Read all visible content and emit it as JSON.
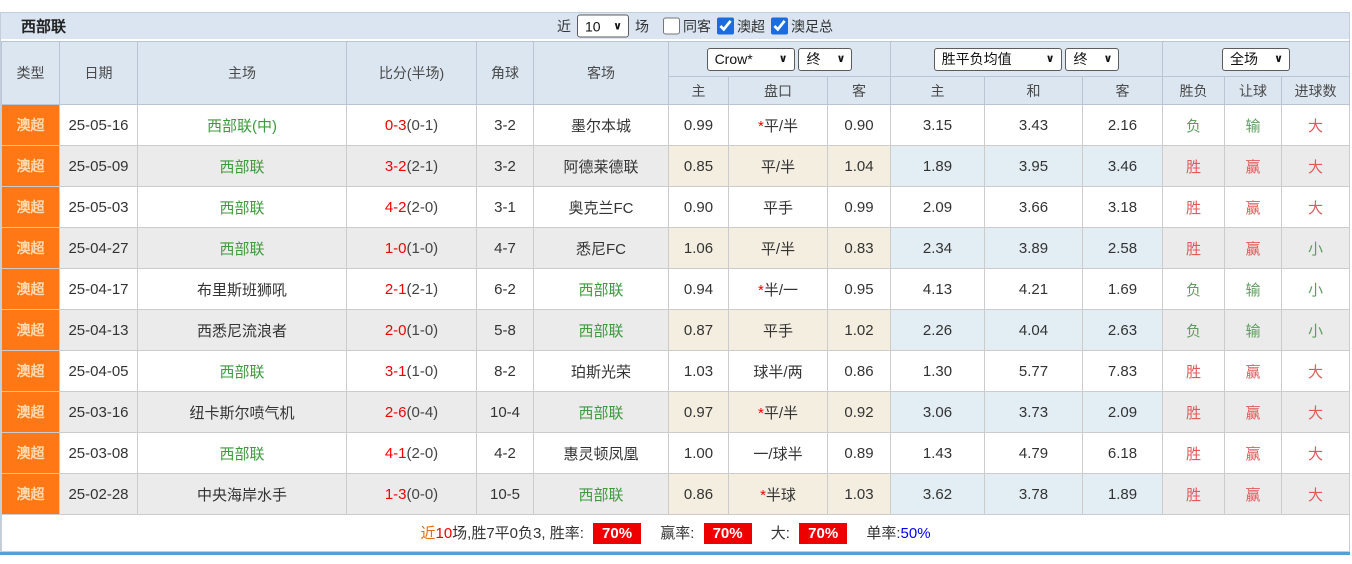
{
  "title": "西部联",
  "colors": {
    "panel-blue": "#dbe5f1",
    "header-blue": "#dce6f1",
    "league-orange": "#ff7815",
    "score-red": "#f20000",
    "team-green": "#3f9a3f",
    "result-red": "#e05a5a",
    "result-green": "#5f9c5f",
    "badge-red": "#ee0000",
    "near-orange": "#e17009",
    "link-blue": "#0000ee",
    "checkbox-blue": "#1b6ce0",
    "bottom-blue": "#58a0d2"
  },
  "filter": {
    "near_label": "近",
    "near_value": "10",
    "games_label": "场",
    "checkboxes": [
      {
        "label": "同客",
        "checked": false
      },
      {
        "label": "澳超",
        "checked": true
      },
      {
        "label": "澳足总",
        "checked": true
      }
    ]
  },
  "header": {
    "type": "类型",
    "date": "日期",
    "home": "主场",
    "score": "比分(半场)",
    "corner": "角球",
    "away": "客场",
    "handicap_company": "Crow*",
    "handicap_state": "终",
    "odds_company": "胜平负均值",
    "odds_state": "终",
    "result_scope": "全场",
    "sub": {
      "h_home": "主",
      "h_line": "盘口",
      "h_away": "客",
      "o_home": "主",
      "o_draw": "和",
      "o_away": "客",
      "wl": "胜负",
      "ah": "让球",
      "goals": "进球数"
    }
  },
  "rows": [
    {
      "type": "澳超",
      "date": "25-05-16",
      "home": "西部联(中)",
      "score_ft": "0-3",
      "score_ht": "(0-1)",
      "corner": "3-2",
      "away": "墨尔本城",
      "h_home": "0.99",
      "line": "*平/半",
      "h_away": "0.90",
      "o_home": "3.15",
      "o_draw": "3.43",
      "o_away": "2.16",
      "wl": "负",
      "ah": "输",
      "goals": "大"
    },
    {
      "type": "澳超",
      "date": "25-05-09",
      "home": "西部联",
      "score_ft": "3-2",
      "score_ht": "(2-1)",
      "corner": "3-2",
      "away": "阿德莱德联",
      "h_home": "0.85",
      "line": "平/半",
      "h_away": "1.04",
      "o_home": "1.89",
      "o_draw": "3.95",
      "o_away": "3.46",
      "wl": "胜",
      "ah": "赢",
      "goals": "大"
    },
    {
      "type": "澳超",
      "date": "25-05-03",
      "home": "西部联",
      "score_ft": "4-2",
      "score_ht": "(2-0)",
      "corner": "3-1",
      "away": "奥克兰FC",
      "h_home": "0.90",
      "line": "平手",
      "h_away": "0.99",
      "o_home": "2.09",
      "o_draw": "3.66",
      "o_away": "3.18",
      "wl": "胜",
      "ah": "赢",
      "goals": "大"
    },
    {
      "type": "澳超",
      "date": "25-04-27",
      "home": "西部联",
      "score_ft": "1-0",
      "score_ht": "(1-0)",
      "corner": "4-7",
      "away": "悉尼FC",
      "h_home": "1.06",
      "line": "平/半",
      "h_away": "0.83",
      "o_home": "2.34",
      "o_draw": "3.89",
      "o_away": "2.58",
      "wl": "胜",
      "ah": "赢",
      "goals": "小"
    },
    {
      "type": "澳超",
      "date": "25-04-17",
      "home": "布里斯班狮吼",
      "score_ft": "2-1",
      "score_ht": "(2-1)",
      "corner": "6-2",
      "away": "西部联",
      "h_home": "0.94",
      "line": "*半/一",
      "h_away": "0.95",
      "o_home": "4.13",
      "o_draw": "4.21",
      "o_away": "1.69",
      "wl": "负",
      "ah": "输",
      "goals": "小"
    },
    {
      "type": "澳超",
      "date": "25-04-13",
      "home": "西悉尼流浪者",
      "score_ft": "2-0",
      "score_ht": "(1-0)",
      "corner": "5-8",
      "away": "西部联",
      "h_home": "0.87",
      "line": "平手",
      "h_away": "1.02",
      "o_home": "2.26",
      "o_draw": "4.04",
      "o_away": "2.63",
      "wl": "负",
      "ah": "输",
      "goals": "小"
    },
    {
      "type": "澳超",
      "date": "25-04-05",
      "home": "西部联",
      "score_ft": "3-1",
      "score_ht": "(1-0)",
      "corner": "8-2",
      "away": "珀斯光荣",
      "h_home": "1.03",
      "line": "球半/两",
      "h_away": "0.86",
      "o_home": "1.30",
      "o_draw": "5.77",
      "o_away": "7.83",
      "wl": "胜",
      "ah": "赢",
      "goals": "大"
    },
    {
      "type": "澳超",
      "date": "25-03-16",
      "home": "纽卡斯尔喷气机",
      "score_ft": "2-6",
      "score_ht": "(0-4)",
      "corner": "10-4",
      "away": "西部联",
      "h_home": "0.97",
      "line": "*平/半",
      "h_away": "0.92",
      "o_home": "3.06",
      "o_draw": "3.73",
      "o_away": "2.09",
      "wl": "胜",
      "ah": "赢",
      "goals": "大"
    },
    {
      "type": "澳超",
      "date": "25-03-08",
      "home": "西部联",
      "score_ft": "4-1",
      "score_ht": "(2-0)",
      "corner": "4-2",
      "away": "惠灵顿凤凰",
      "h_home": "1.00",
      "line": "一/球半",
      "h_away": "0.89",
      "o_home": "1.43",
      "o_draw": "4.79",
      "o_away": "6.18",
      "wl": "胜",
      "ah": "赢",
      "goals": "大"
    },
    {
      "type": "澳超",
      "date": "25-02-28",
      "home": "中央海岸水手",
      "score_ft": "1-3",
      "score_ht": "(0-0)",
      "corner": "10-5",
      "away": "西部联",
      "h_home": "0.86",
      "line": "*半球",
      "h_away": "1.03",
      "o_home": "3.62",
      "o_draw": "3.78",
      "o_away": "1.89",
      "wl": "胜",
      "ah": "赢",
      "goals": "大"
    }
  ],
  "footer": {
    "near_label": "近",
    "near_count": "10",
    "summary": "场,胜7平0负3, 胜率:",
    "win_rate": "70%",
    "handicap_label": "赢率:",
    "handicap_rate": "70%",
    "big_label": "大:",
    "big_rate": "70%",
    "single_label": "单率:",
    "single_rate": "50%"
  }
}
